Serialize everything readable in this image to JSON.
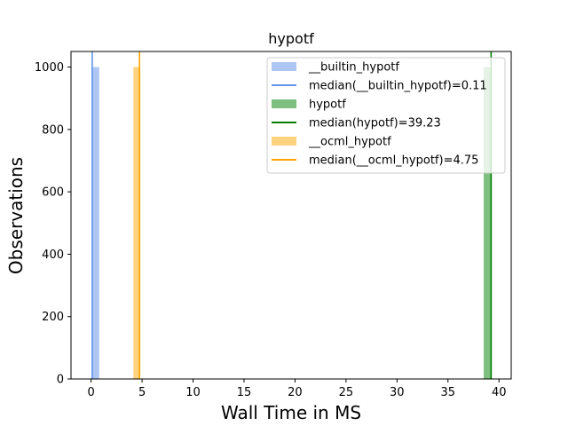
{
  "chart_data": {
    "type": "bar",
    "title": "hypotf",
    "xlabel": "Wall Time in MS",
    "ylabel": "Observations",
    "xlim": [
      -1.97,
      41.2
    ],
    "ylim": [
      0,
      1050
    ],
    "xticks": [
      0,
      5,
      10,
      15,
      20,
      25,
      30,
      35,
      40
    ],
    "yticks": [
      0,
      200,
      400,
      600,
      800,
      1000
    ],
    "grid": false,
    "legend_position": "top-right",
    "series": [
      {
        "name": "__builtin_hypotf",
        "kind": "hist",
        "bins": [
          {
            "x0": 0.05,
            "x1": 0.8,
            "count": 1000
          }
        ],
        "color": "#aec7f2"
      },
      {
        "name": "median(__builtin_hypotf)=0.11",
        "kind": "vline",
        "x": 0.11,
        "color": "#6495ed"
      },
      {
        "name": "hypotf",
        "kind": "hist",
        "bins": [
          {
            "x0": 38.5,
            "x1": 39.25,
            "count": 1000
          }
        ],
        "color": "#7fbf7f"
      },
      {
        "name": "median(hypotf)=39.23",
        "kind": "vline",
        "x": 39.23,
        "color": "#008000"
      },
      {
        "name": "__ocml_hypotf",
        "kind": "hist",
        "bins": [
          {
            "x0": 4.15,
            "x1": 4.8,
            "count": 1000
          }
        ],
        "color": "#ffd27f"
      },
      {
        "name": "median(__ocml_hypotf)=4.75",
        "kind": "vline",
        "x": 4.75,
        "color": "#ffa500"
      }
    ]
  }
}
